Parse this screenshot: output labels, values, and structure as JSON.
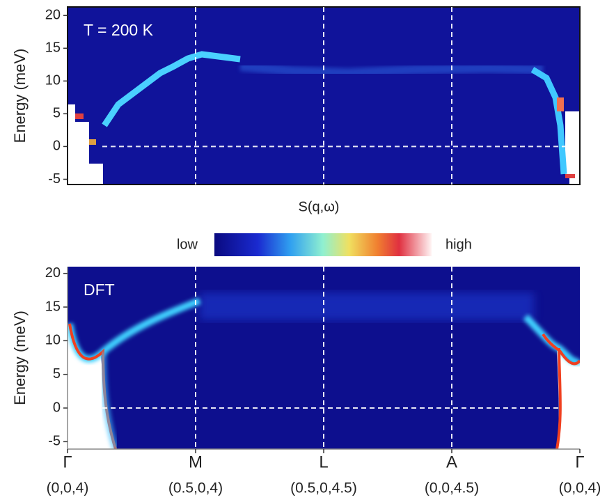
{
  "chart_data": [
    {
      "type": "heatmap",
      "ylabel": "Energy (meV)",
      "annotation": "T = 200 K",
      "ylim": [
        -5.8,
        21.3
      ],
      "yticks": [
        -5,
        0,
        5,
        10,
        15,
        20
      ],
      "xlim": [
        0,
        4
      ],
      "xticks": [
        0,
        1,
        2,
        3,
        4
      ],
      "frame": true
    },
    {
      "type": "heatmap",
      "ylabel": "Energy (meV)",
      "annotation": "DFT",
      "ylim": [
        -6.1,
        21.0
      ],
      "yticks": [
        -5,
        0,
        5,
        10,
        15,
        20
      ],
      "xlim": [
        0,
        4
      ],
      "xticks": [
        {
          "value": 0,
          "label": "Γ"
        },
        {
          "value": 1,
          "label": "M"
        },
        {
          "value": 2,
          "label": "L"
        },
        {
          "value": 3,
          "label": "A"
        },
        {
          "value": 4,
          "label": "Γ"
        }
      ],
      "xtick_coords": [
        "(0,0,4)",
        "(0.5,0,4)",
        "(0.5,0,4.5)",
        "(0,0,4.5)",
        "(0,0,4)"
      ],
      "frame": false
    }
  ],
  "colorbar": {
    "title": "S(q,ω)",
    "low": "low",
    "high": "high"
  }
}
